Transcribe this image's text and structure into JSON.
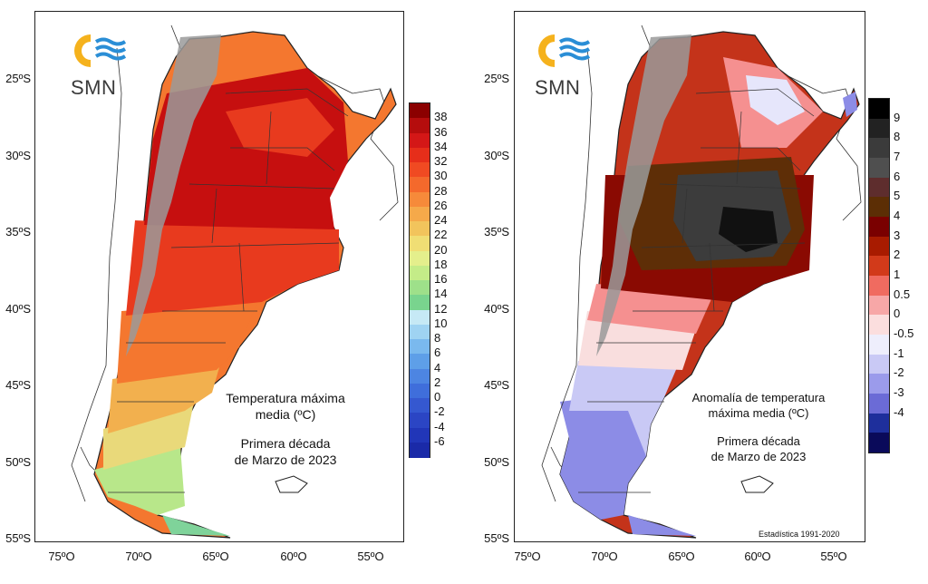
{
  "brand": {
    "logo_text": "SMN"
  },
  "axes": {
    "lat_labels": [
      "25ºS",
      "30ºS",
      "35ºS",
      "40ºS",
      "45ºS",
      "50ºS",
      "55ºS"
    ],
    "lon_labels": [
      "75ºO",
      "70ºO",
      "65ºO",
      "60ºO",
      "55ºO"
    ]
  },
  "left_map": {
    "caption_line1": "Temperatura máxima",
    "caption_line2": "media (ºC)",
    "caption_line3": "Primera década",
    "caption_line4": "de Marzo de 2023",
    "legend": {
      "ticks": [
        "38",
        "36",
        "34",
        "32",
        "30",
        "28",
        "26",
        "24",
        "22",
        "20",
        "18",
        "16",
        "14",
        "12",
        "10",
        "8",
        "6",
        "4",
        "2",
        "0",
        "-2",
        "-4",
        "-6"
      ],
      "colors": [
        "#8b0000",
        "#b50d0d",
        "#d41717",
        "#e62e1a",
        "#f04a22",
        "#f4692c",
        "#f68a3a",
        "#f5a94a",
        "#f2c45c",
        "#f0de74",
        "#e4ef8c",
        "#c4ec88",
        "#9ee08a",
        "#79d48e",
        "#c6e9f5",
        "#9fd3f2",
        "#7ab9ee",
        "#5e9fe8",
        "#4d85e2",
        "#3f6edb",
        "#3558d0",
        "#2b45c4",
        "#2136b8",
        "#1a2aa8"
      ]
    },
    "regions": [
      {
        "name": "puna",
        "color": "#9a9a9a"
      },
      {
        "name": "very-hot",
        "color": "#c60f0f"
      },
      {
        "name": "hot",
        "color": "#e83a1e"
      },
      {
        "name": "warm",
        "color": "#f4772f"
      },
      {
        "name": "mild",
        "color": "#f2b04e"
      },
      {
        "name": "cool",
        "color": "#e9d97a"
      },
      {
        "name": "cold",
        "color": "#b8e78a"
      },
      {
        "name": "tip",
        "color": "#7fd39a"
      }
    ]
  },
  "right_map": {
    "caption_line1": "Anomalía de temperatura",
    "caption_line2": "máxima media (ºC)",
    "caption_line3": "Primera década",
    "caption_line4": "de Marzo de 2023",
    "footnote": "Estadística 1991-2020",
    "legend": {
      "ticks": [
        "9",
        "8",
        "7",
        "6",
        "5",
        "4",
        "3",
        "2",
        "1",
        "0.5",
        "0",
        "-0.5",
        "-1",
        "-2",
        "-3",
        "-4"
      ],
      "colors": [
        "#000000",
        "#222222",
        "#3b3b3b",
        "#4f4f4f",
        "#5e2d2d",
        "#5c2e05",
        "#7a0000",
        "#a81b00",
        "#d23a1a",
        "#f06b60",
        "#f7a7a7",
        "#fbdede",
        "#eeeefc",
        "#c9c9f5",
        "#9b9beb",
        "#6b6bd6",
        "#1e2f9c",
        "#0a0a5a"
      ]
    },
    "regions": [
      {
        "name": "puna",
        "color": "#9a9a9a"
      },
      {
        "name": "max",
        "color": "#111111"
      },
      {
        "name": "very-high",
        "color": "#3c3c3c"
      },
      {
        "name": "high",
        "color": "#5e2e07"
      },
      {
        "name": "elevated",
        "color": "#8a0a02"
      },
      {
        "name": "moderate",
        "color": "#c4331a"
      },
      {
        "name": "slight",
        "color": "#f59090"
      },
      {
        "name": "neutral",
        "color": "#f9dede"
      },
      {
        "name": "cool",
        "color": "#c9c9f5"
      },
      {
        "name": "colder",
        "color": "#8c8ce6"
      }
    ]
  }
}
